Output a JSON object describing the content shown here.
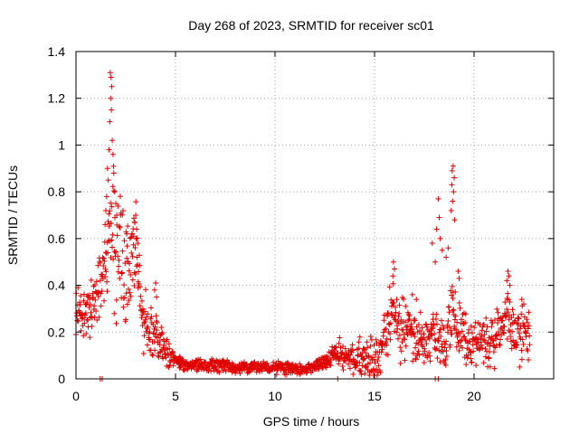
{
  "chart_data": {
    "type": "scatter",
    "title": "Day 268 of 2023, SRMTID for receiver sc01",
    "xlabel": "GPS time / hours",
    "ylabel": "SRMTID / TECUs",
    "xlim": [
      0,
      24
    ],
    "ylim": [
      0,
      1.4
    ],
    "xticks": [
      0,
      5,
      10,
      15,
      20
    ],
    "yticks": [
      0,
      0.2,
      0.4,
      0.6,
      0.8,
      1,
      1.2,
      1.4
    ],
    "xtick_labels": [
      "0",
      "5",
      "10",
      "15",
      "20"
    ],
    "ytick_labels": [
      "0",
      "0.2",
      "0.4",
      "0.6",
      "0.8",
      "1",
      "1.2",
      "1.4"
    ],
    "grid": true,
    "marker": "+",
    "color": "#e00000",
    "series": [
      {
        "name": "sc01",
        "profile_x": [
          0.0,
          0.3,
          0.6,
          0.9,
          1.2,
          1.5,
          1.8,
          2.1,
          2.4,
          2.7,
          3.0,
          3.3,
          3.6,
          4.0,
          4.3,
          4.7,
          5.0,
          5.5,
          6.0,
          7.0,
          8.0,
          9.0,
          10.0,
          11.0,
          11.5,
          12.0,
          12.5,
          13.0,
          13.5,
          14.0,
          14.5,
          15.0,
          15.3,
          15.6,
          15.9,
          16.2,
          16.5,
          16.8,
          17.1,
          17.4,
          17.7,
          18.0,
          18.3,
          18.6,
          18.9,
          19.2,
          19.5,
          19.8,
          20.1,
          20.4,
          20.7,
          21.0,
          21.3,
          21.6,
          21.9,
          22.2,
          22.5,
          22.8
        ],
        "profile_y": [
          0.27,
          0.28,
          0.3,
          0.32,
          0.38,
          0.5,
          0.72,
          0.58,
          0.4,
          0.5,
          0.58,
          0.3,
          0.22,
          0.2,
          0.14,
          0.1,
          0.08,
          0.06,
          0.06,
          0.06,
          0.05,
          0.05,
          0.05,
          0.04,
          0.04,
          0.05,
          0.07,
          0.1,
          0.1,
          0.09,
          0.08,
          0.08,
          0.1,
          0.2,
          0.3,
          0.22,
          0.2,
          0.22,
          0.17,
          0.14,
          0.18,
          0.22,
          0.18,
          0.16,
          0.3,
          0.22,
          0.18,
          0.15,
          0.16,
          0.17,
          0.18,
          0.18,
          0.2,
          0.28,
          0.22,
          0.18,
          0.2,
          0.18
        ],
        "spread_x": [
          0,
          1.5,
          2.0,
          3.0,
          4.5,
          5.0,
          12.0,
          13.0,
          15.5,
          17.0,
          18.5,
          20.0,
          22.0,
          23
        ],
        "spread_y": [
          0.09,
          0.12,
          0.3,
          0.14,
          0.06,
          0.02,
          0.02,
          0.04,
          0.1,
          0.1,
          0.1,
          0.08,
          0.1,
          0.08
        ],
        "highlights": [
          {
            "x": 1.72,
            "y": 1.31
          },
          {
            "x": 1.76,
            "y": 1.29
          },
          {
            "x": 1.8,
            "y": 1.25
          },
          {
            "x": 1.74,
            "y": 1.2
          },
          {
            "x": 1.78,
            "y": 1.15
          },
          {
            "x": 1.7,
            "y": 1.1
          },
          {
            "x": 1.82,
            "y": 1.02
          },
          {
            "x": 1.66,
            "y": 0.98
          },
          {
            "x": 1.86,
            "y": 0.96
          },
          {
            "x": 1.58,
            "y": 0.9
          },
          {
            "x": 1.9,
            "y": 0.88
          },
          {
            "x": 1.62,
            "y": 0.85
          },
          {
            "x": 1.95,
            "y": 0.8
          },
          {
            "x": 1.54,
            "y": 0.78
          },
          {
            "x": 2.0,
            "y": 0.75
          },
          {
            "x": 1.5,
            "y": 0.72
          },
          {
            "x": 2.05,
            "y": 0.7
          },
          {
            "x": 1.46,
            "y": 0.66
          },
          {
            "x": 3.0,
            "y": 0.7
          },
          {
            "x": 2.95,
            "y": 0.67
          },
          {
            "x": 3.05,
            "y": 0.64
          },
          {
            "x": 2.9,
            "y": 0.61
          },
          {
            "x": 2.55,
            "y": 0.62
          },
          {
            "x": 3.1,
            "y": 0.58
          },
          {
            "x": 15.95,
            "y": 0.5
          },
          {
            "x": 16.0,
            "y": 0.47
          },
          {
            "x": 15.92,
            "y": 0.44
          },
          {
            "x": 18.95,
            "y": 0.91
          },
          {
            "x": 18.9,
            "y": 0.89
          },
          {
            "x": 19.0,
            "y": 0.86
          },
          {
            "x": 18.88,
            "y": 0.83
          },
          {
            "x": 18.97,
            "y": 0.8
          },
          {
            "x": 18.92,
            "y": 0.76
          },
          {
            "x": 18.85,
            "y": 0.72
          },
          {
            "x": 19.02,
            "y": 0.68
          },
          {
            "x": 18.2,
            "y": 0.77
          },
          {
            "x": 18.25,
            "y": 0.69
          },
          {
            "x": 18.12,
            "y": 0.64
          },
          {
            "x": 18.3,
            "y": 0.6
          },
          {
            "x": 17.9,
            "y": 0.58
          },
          {
            "x": 18.4,
            "y": 0.55
          },
          {
            "x": 18.05,
            "y": 0.5
          },
          {
            "x": 18.7,
            "y": 0.56
          },
          {
            "x": 18.6,
            "y": 0.52
          },
          {
            "x": 19.2,
            "y": 0.46
          },
          {
            "x": 19.25,
            "y": 0.43
          },
          {
            "x": 21.7,
            "y": 0.46
          },
          {
            "x": 21.75,
            "y": 0.44
          },
          {
            "x": 21.65,
            "y": 0.42
          },
          {
            "x": 21.8,
            "y": 0.4
          },
          {
            "x": 22.4,
            "y": 0.34
          },
          {
            "x": 22.5,
            "y": 0.32
          },
          {
            "x": 16.9,
            "y": 0.36
          },
          {
            "x": 17.1,
            "y": 0.34
          },
          {
            "x": 4.0,
            "y": 0.41
          },
          {
            "x": 3.95,
            "y": 0.38
          },
          {
            "x": 4.05,
            "y": 0.35
          },
          {
            "x": 1.32,
            "y": 0.0
          },
          {
            "x": 1.22,
            "y": 0.0
          },
          {
            "x": 13.15,
            "y": 0.0
          },
          {
            "x": 18.05,
            "y": 0.0
          },
          {
            "x": 18.2,
            "y": 0.0
          }
        ]
      }
    ]
  }
}
